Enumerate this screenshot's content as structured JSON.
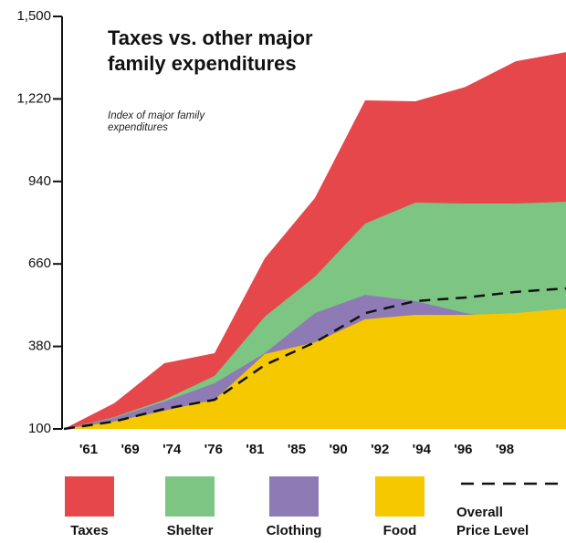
{
  "chart_data": {
    "type": "area",
    "title": "Taxes vs. other major family expenditures",
    "subtitle": "Index of major family expenditures",
    "categories": [
      "'61",
      "'69",
      "'74",
      "'76",
      "'81",
      "'85",
      "'90",
      "'92",
      "'94",
      "'96",
      "'98"
    ],
    "series": [
      {
        "name": "Taxes",
        "color": "#e5474b",
        "values": [
          100,
          187,
          323,
          357,
          679,
          884,
          1215,
          1212,
          1261,
          1348,
          1379
        ]
      },
      {
        "name": "Shelter",
        "color": "#7dc582",
        "values": [
          100,
          140,
          199,
          280,
          481,
          617,
          797,
          868,
          865,
          865,
          871
        ]
      },
      {
        "name": "Clothing",
        "color": "#8e7bb5",
        "values": [
          100,
          137,
          193,
          255,
          357,
          493,
          555,
          534,
          493,
          472,
          478
        ]
      },
      {
        "name": "Food",
        "color": "#f5c800",
        "values": [
          100,
          125,
          162,
          199,
          354,
          394,
          472,
          487,
          487,
          493,
          509
        ]
      },
      {
        "name": "Overall Price Level",
        "color": "#111111",
        "line_style": "dashed",
        "values": [
          100,
          125,
          168,
          199,
          317,
          394,
          493,
          534,
          546,
          565,
          577
        ]
      }
    ],
    "ylim": [
      100,
      1500
    ],
    "yticks": [
      100,
      380,
      660,
      940,
      {
        "value": 1220,
        "label": "1,220"
      },
      {
        "value": 1500,
        "label": "1,500"
      }
    ],
    "grid": false
  }
}
